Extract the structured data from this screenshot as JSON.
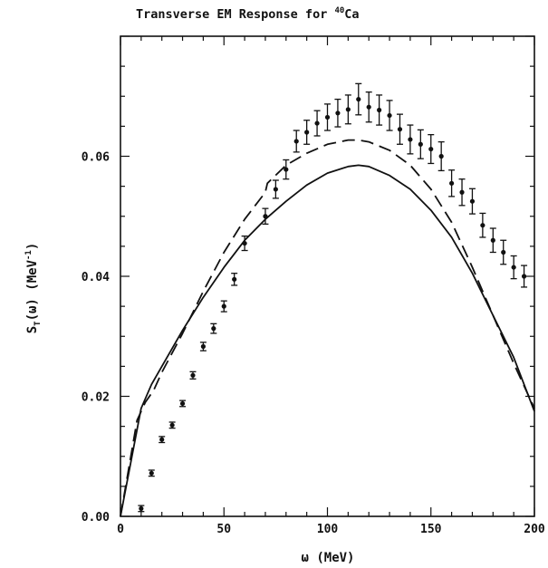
{
  "chart_data": {
    "type": "line",
    "title": "Transverse EM Response for ⁴⁰Ca",
    "title_main": "Transverse EM Response for ",
    "title_sup": "40",
    "title_elem": "Ca",
    "xlabel": "ω (MeV)",
    "ylabel": "S_T(ω) (MeV⁻¹)",
    "ylabel_parts": {
      "s": "S",
      "sub": "T",
      "mid": "(ω) (MeV",
      "sup": "-1",
      "end": ")"
    },
    "xlim": [
      0,
      200
    ],
    "ylim": [
      0,
      0.08
    ],
    "x_ticks": [
      0,
      50,
      100,
      150,
      200
    ],
    "x_tick_labels": [
      "0",
      "50",
      "100",
      "150",
      "200"
    ],
    "y_ticks": [
      0,
      0.02,
      0.04,
      0.06
    ],
    "y_tick_labels": [
      "0.00",
      "0.02",
      "0.04",
      "0.06"
    ],
    "grid": false,
    "series": [
      {
        "style": "solid",
        "x": [
          0,
          10,
          15,
          20,
          30,
          40,
          50,
          60,
          70,
          80,
          90,
          100,
          110,
          115,
          120,
          130,
          140,
          150,
          160,
          170,
          180,
          190,
          200
        ],
        "y": [
          0,
          0.018,
          0.022,
          0.025,
          0.031,
          0.0365,
          0.0415,
          0.046,
          0.0495,
          0.0525,
          0.0552,
          0.0572,
          0.0583,
          0.0585,
          0.0583,
          0.0568,
          0.0545,
          0.051,
          0.0465,
          0.0405,
          0.0335,
          0.0265,
          0.0175
        ]
      },
      {
        "style": "dashed",
        "x": [
          0,
          8,
          12,
          16,
          20,
          30,
          40,
          50,
          60,
          70,
          71,
          80,
          90,
          100,
          110,
          115,
          120,
          130,
          140,
          150,
          160,
          170,
          180,
          190,
          200
        ],
        "y": [
          0,
          0.016,
          0.019,
          0.021,
          0.024,
          0.0305,
          0.0375,
          0.044,
          0.0495,
          0.054,
          0.0555,
          0.0585,
          0.0605,
          0.062,
          0.0627,
          0.0627,
          0.0624,
          0.061,
          0.0585,
          0.0545,
          0.049,
          0.0415,
          0.0335,
          0.0255,
          0.018
        ]
      },
      {
        "style": "points_with_errorbars",
        "x": [
          10,
          15,
          20,
          25,
          30,
          35,
          40,
          45,
          50,
          55,
          60,
          70,
          75,
          80,
          85,
          90,
          95,
          100,
          105,
          110,
          115,
          120,
          125,
          130,
          135,
          140,
          145,
          150,
          155,
          160,
          165,
          170,
          175,
          180,
          185,
          190,
          195
        ],
        "y": [
          0.0013,
          0.0072,
          0.0128,
          0.0152,
          0.0188,
          0.0235,
          0.0283,
          0.0313,
          0.035,
          0.0395,
          0.0455,
          0.05,
          0.0545,
          0.0578,
          0.0625,
          0.064,
          0.0655,
          0.0665,
          0.0672,
          0.0678,
          0.0695,
          0.0682,
          0.0677,
          0.0668,
          0.0645,
          0.0628,
          0.062,
          0.0612,
          0.06,
          0.0555,
          0.054,
          0.0525,
          0.0485,
          0.046,
          0.044,
          0.0415,
          0.04
        ],
        "err": [
          0.0005,
          0.0005,
          0.0005,
          0.0005,
          0.0005,
          0.0006,
          0.0007,
          0.0008,
          0.0009,
          0.001,
          0.0012,
          0.0013,
          0.0015,
          0.0016,
          0.0018,
          0.002,
          0.0021,
          0.0022,
          0.0023,
          0.0024,
          0.0026,
          0.0025,
          0.0025,
          0.0025,
          0.0025,
          0.0024,
          0.0024,
          0.0024,
          0.0024,
          0.0022,
          0.0022,
          0.0021,
          0.002,
          0.002,
          0.002,
          0.0019,
          0.0018
        ]
      }
    ]
  }
}
